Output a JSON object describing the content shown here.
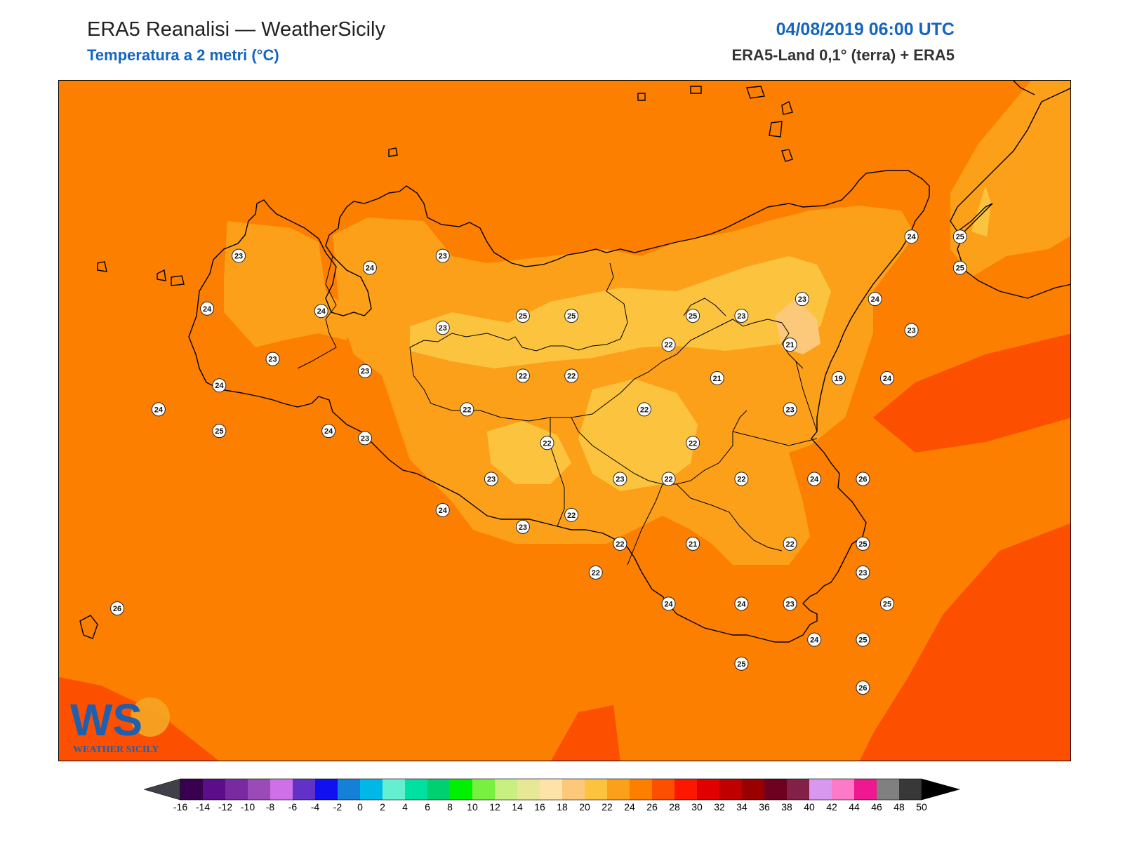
{
  "header": {
    "title": "ERA5 Reanalisi — WeatherSicily",
    "subtitle": "Temperatura a 2 metri (°C)",
    "datetime": "04/08/2019 06:00 UTC",
    "source": "ERA5-Land 0,1° (terra) + ERA5"
  },
  "logo": {
    "mark": "WS",
    "text": "WEATHER SICILY"
  },
  "colors": {
    "title": "#222222",
    "accent_blue": "#1565c0",
    "t16_18": "#fde3a7",
    "t18_20": "#fcc87a",
    "t20_22": "#fcc43e",
    "t22_24": "#fca01a",
    "t24_26": "#fc7f00",
    "t26_28": "#fc4f00",
    "coast": "#000000"
  },
  "stations": [
    {
      "lon": 12.43,
      "lat": 38.3,
      "value": "23"
    },
    {
      "lon": 12.57,
      "lat": 37.87,
      "value": "23"
    },
    {
      "lon": 12.3,
      "lat": 38.08,
      "value": "24"
    },
    {
      "lon": 12.35,
      "lat": 37.76,
      "value": "24"
    },
    {
      "lon": 12.1,
      "lat": 37.66,
      "value": "24"
    },
    {
      "lon": 12.35,
      "lat": 37.57,
      "value": "25"
    },
    {
      "lon": 12.8,
      "lat": 37.57,
      "value": "24"
    },
    {
      "lon": 12.77,
      "lat": 38.07,
      "value": "24"
    },
    {
      "lon": 12.97,
      "lat": 38.25,
      "value": "24"
    },
    {
      "lon": 13.27,
      "lat": 38.3,
      "value": "23"
    },
    {
      "lon": 13.27,
      "lat": 38.0,
      "value": "23"
    },
    {
      "lon": 12.95,
      "lat": 37.82,
      "value": "23"
    },
    {
      "lon": 12.95,
      "lat": 37.54,
      "value": "23"
    },
    {
      "lon": 13.6,
      "lat": 38.05,
      "value": "25"
    },
    {
      "lon": 13.6,
      "lat": 37.8,
      "value": "22"
    },
    {
      "lon": 13.37,
      "lat": 37.66,
      "value": "22"
    },
    {
      "lon": 13.47,
      "lat": 37.37,
      "value": "23"
    },
    {
      "lon": 13.27,
      "lat": 37.24,
      "value": "24"
    },
    {
      "lon": 13.6,
      "lat": 37.17,
      "value": "23"
    },
    {
      "lon": 13.8,
      "lat": 38.05,
      "value": "25"
    },
    {
      "lon": 13.8,
      "lat": 37.8,
      "value": "22"
    },
    {
      "lon": 13.7,
      "lat": 37.52,
      "value": "22"
    },
    {
      "lon": 13.8,
      "lat": 37.22,
      "value": "22"
    },
    {
      "lon": 13.9,
      "lat": 36.98,
      "value": "22"
    },
    {
      "lon": 14.0,
      "lat": 37.37,
      "value": "23"
    },
    {
      "lon": 14.1,
      "lat": 37.66,
      "value": "22"
    },
    {
      "lon": 14.0,
      "lat": 37.1,
      "value": "22"
    },
    {
      "lon": 14.2,
      "lat": 37.93,
      "value": "22"
    },
    {
      "lon": 14.2,
      "lat": 37.37,
      "value": "22"
    },
    {
      "lon": 14.2,
      "lat": 36.85,
      "value": "24"
    },
    {
      "lon": 14.3,
      "lat": 38.05,
      "value": "25"
    },
    {
      "lon": 14.4,
      "lat": 37.79,
      "value": "21"
    },
    {
      "lon": 14.3,
      "lat": 37.52,
      "value": "22"
    },
    {
      "lon": 14.3,
      "lat": 37.1,
      "value": "21"
    },
    {
      "lon": 14.5,
      "lat": 38.05,
      "value": "23"
    },
    {
      "lon": 14.5,
      "lat": 37.37,
      "value": "22"
    },
    {
      "lon": 14.5,
      "lat": 36.85,
      "value": "24"
    },
    {
      "lon": 14.7,
      "lat": 37.66,
      "value": "23"
    },
    {
      "lon": 14.7,
      "lat": 37.1,
      "value": "22"
    },
    {
      "lon": 14.5,
      "lat": 36.6,
      "value": "25"
    },
    {
      "lon": 14.7,
      "lat": 36.85,
      "value": "23"
    },
    {
      "lon": 14.75,
      "lat": 38.12,
      "value": "23"
    },
    {
      "lon": 14.7,
      "lat": 37.93,
      "value": "21"
    },
    {
      "lon": 14.8,
      "lat": 37.37,
      "value": "24"
    },
    {
      "lon": 14.8,
      "lat": 36.7,
      "value": "24"
    },
    {
      "lon": 14.9,
      "lat": 37.79,
      "value": "19"
    },
    {
      "lon": 15.0,
      "lat": 36.98,
      "value": "23"
    },
    {
      "lon": 15.0,
      "lat": 36.7,
      "value": "25"
    },
    {
      "lon": 15.05,
      "lat": 38.12,
      "value": "24"
    },
    {
      "lon": 15.2,
      "lat": 38.38,
      "value": "24"
    },
    {
      "lon": 15.2,
      "lat": 37.99,
      "value": "23"
    },
    {
      "lon": 15.1,
      "lat": 37.79,
      "value": "24"
    },
    {
      "lon": 15.0,
      "lat": 37.37,
      "value": "26"
    },
    {
      "lon": 15.0,
      "lat": 37.1,
      "value": "25"
    },
    {
      "lon": 15.1,
      "lat": 36.85,
      "value": "25"
    },
    {
      "lon": 15.0,
      "lat": 36.5,
      "value": "26"
    },
    {
      "lon": 15.4,
      "lat": 38.38,
      "value": "25"
    },
    {
      "lon": 15.4,
      "lat": 38.25,
      "value": "25"
    },
    {
      "lon": 11.93,
      "lat": 36.83,
      "value": "26"
    }
  ],
  "colorbar": {
    "ticks": [
      "-16",
      "-14",
      "-12",
      "-10",
      "-8",
      "-6",
      "-4",
      "-2",
      "0",
      "2",
      "4",
      "6",
      "8",
      "10",
      "12",
      "14",
      "16",
      "18",
      "20",
      "22",
      "24",
      "26",
      "28",
      "30",
      "32",
      "34",
      "36",
      "38",
      "40",
      "42",
      "44",
      "46",
      "48",
      "50"
    ],
    "colors": [
      "#3a0050",
      "#5a0e8a",
      "#7a2aa0",
      "#9b4bb8",
      "#d070e8",
      "#6232c8",
      "#1010f0",
      "#1480d8",
      "#00b8e8",
      "#64f0d0",
      "#00e0a0",
      "#00d070",
      "#00f000",
      "#78f040",
      "#c8f080",
      "#e6e896",
      "#fde3a7",
      "#fcc87a",
      "#fcc43e",
      "#fca01a",
      "#fc7f00",
      "#fc4f00",
      "#fc1800",
      "#e00000",
      "#c00000",
      "#9a0000",
      "#6e0020",
      "#842048",
      "#d898f0",
      "#fc7ac8",
      "#f01890",
      "#808080",
      "#383838"
    ],
    "under_color": "#404048",
    "over_color": "#000000"
  }
}
